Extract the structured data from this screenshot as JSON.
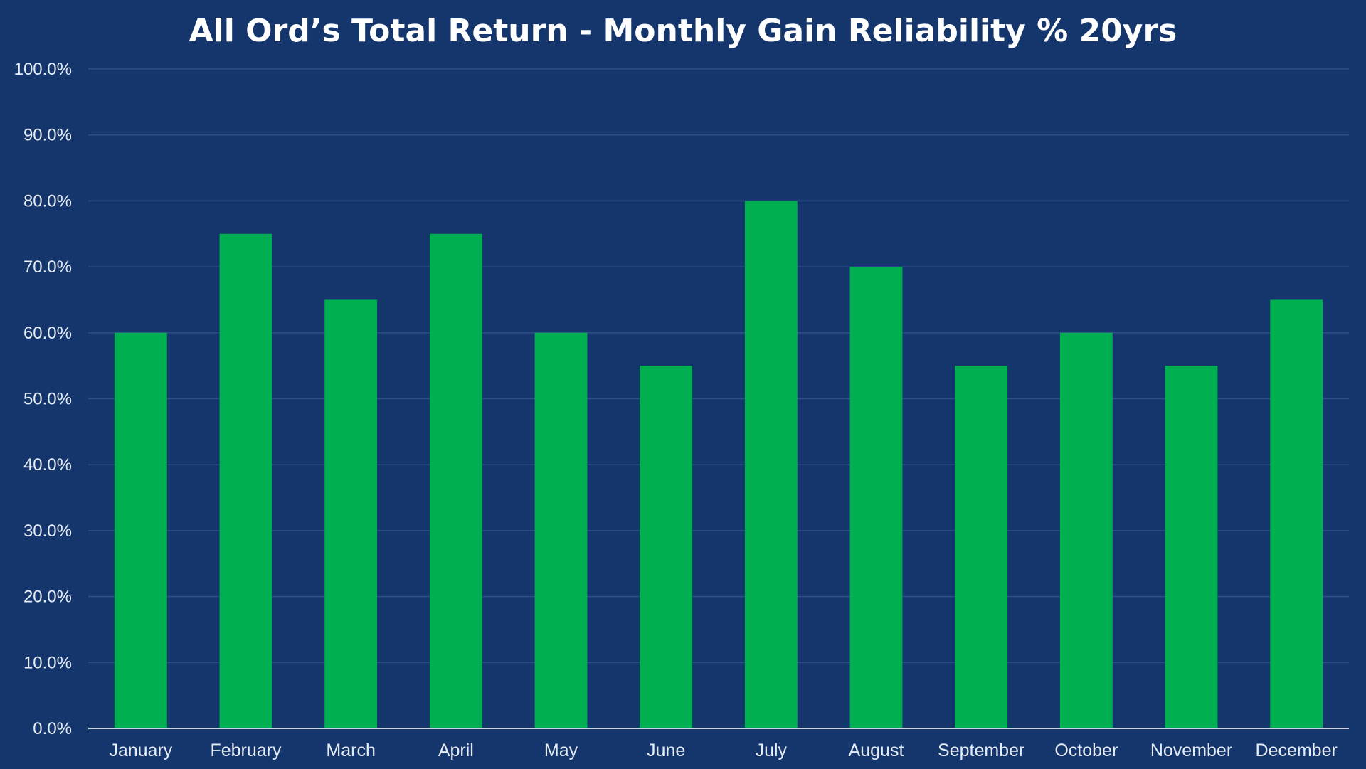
{
  "chart_data": {
    "type": "bar",
    "title": "All Ord’s Total Return - Monthly Gain Reliability % 20yrs",
    "xlabel": "",
    "ylabel": "",
    "categories": [
      "January",
      "February",
      "March",
      "April",
      "May",
      "June",
      "July",
      "August",
      "September",
      "October",
      "November",
      "December"
    ],
    "values": [
      60,
      75,
      65,
      75,
      60,
      55,
      80,
      70,
      55,
      60,
      55,
      65
    ],
    "ylim": [
      0,
      100
    ],
    "yticks": [
      "0.0%",
      "10.0%",
      "20.0%",
      "30.0%",
      "40.0%",
      "50.0%",
      "60.0%",
      "70.0%",
      "80.0%",
      "90.0%",
      "100.0%"
    ],
    "grid": true,
    "legend": "none",
    "colors": {
      "background": "#14366d",
      "bar": "#00af50",
      "grid": "#2e4f85",
      "axis": "#c8d2e0",
      "text": "#e6ecf5",
      "title": "#ffffff"
    }
  }
}
